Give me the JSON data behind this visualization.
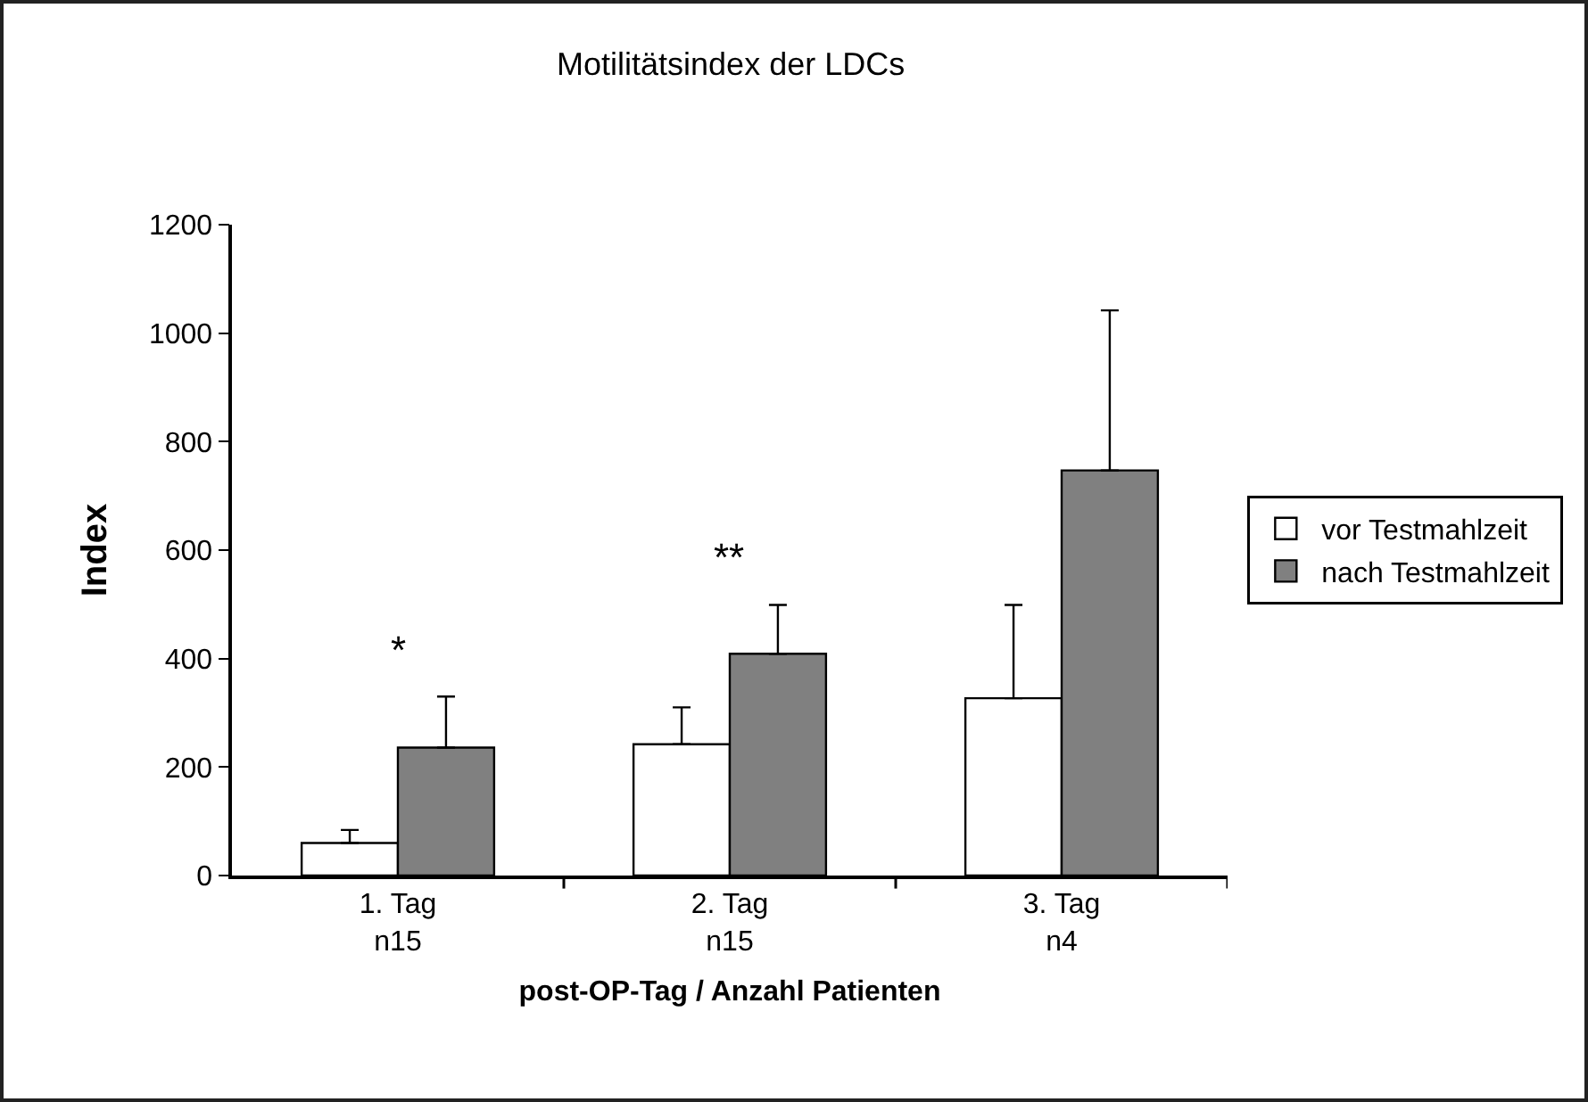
{
  "chart_data": {
    "type": "bar",
    "title": "Motilitätsindex der LDCs",
    "xlabel": "post-OP-Tag / Anzahl Patienten",
    "ylabel": "Index",
    "categories": [
      "1. Tag\nn15",
      "2. Tag\nn15",
      "3. Tag\nn4"
    ],
    "series": [
      {
        "name": "vor Testmahlzeit",
        "color": "#ffffff",
        "values": [
          60,
          242,
          327
        ],
        "errors": [
          [
            60,
            84
          ],
          [
            242,
            310
          ],
          [
            327,
            499
          ]
        ]
      },
      {
        "name": "nach Testmahlzeit",
        "color": "#808080",
        "values": [
          236,
          409,
          747
        ],
        "errors": [
          [
            236,
            330
          ],
          [
            409,
            499
          ],
          [
            747,
            1042
          ]
        ]
      }
    ],
    "ylim": [
      0,
      1200
    ],
    "yticks": [
      0,
      200,
      400,
      600,
      800,
      1000,
      1200
    ],
    "grid": false,
    "legend": "right",
    "annotations": [
      "*",
      "**"
    ]
  }
}
